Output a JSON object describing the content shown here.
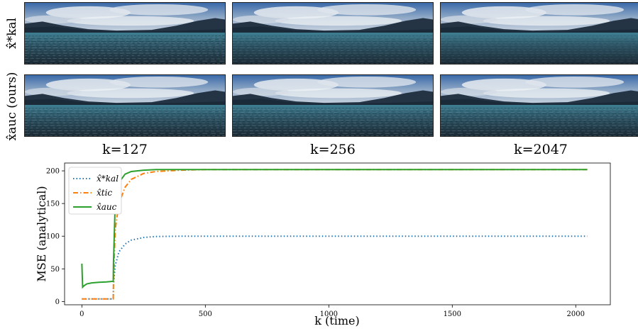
{
  "rows": [
    {
      "label": "x̂*kal"
    },
    {
      "label": "x̂auc (ours)"
    }
  ],
  "columns": [
    "k=127",
    "k=256",
    "k=2047"
  ],
  "chart_data": {
    "type": "line",
    "xlabel": "k (time)",
    "ylabel": "MSE (analytical)",
    "xlim": [
      -70,
      2140
    ],
    "ylim": [
      -5,
      212
    ],
    "xticks": [
      0,
      500,
      1000,
      1500,
      2000
    ],
    "yticks": [
      0,
      50,
      100,
      150,
      200
    ],
    "grid": false,
    "legend_position": "top-left",
    "series": [
      {
        "name": "x̂*kal",
        "color": "#1f77b4",
        "style": "dotted",
        "x": [
          0,
          127,
          128,
          135,
          150,
          175,
          200,
          250,
          300,
          400,
          500,
          750,
          1000,
          2047
        ],
        "y": [
          4,
          4,
          25,
          55,
          76,
          88,
          94,
          98,
          99.5,
          100,
          100,
          100,
          100,
          100
        ]
      },
      {
        "name": "x̂tic",
        "color": "#ff7f0e",
        "style": "dashdot",
        "x": [
          0,
          127,
          128,
          135,
          150,
          175,
          200,
          250,
          300,
          400,
          500,
          750,
          1000,
          2047
        ],
        "y": [
          4,
          4,
          30,
          110,
          150,
          175,
          187,
          196,
          199,
          201,
          202,
          202,
          202,
          202
        ]
      },
      {
        "name": "x̂auc",
        "color": "#2ca02c",
        "style": "solid",
        "x": [
          0,
          3,
          8,
          20,
          40,
          70,
          100,
          127,
          128,
          135,
          150,
          175,
          200,
          250,
          300,
          500,
          1000,
          2047
        ],
        "y": [
          58,
          22,
          24,
          27,
          28.5,
          29.5,
          30,
          31,
          60,
          150,
          182,
          195,
          199,
          201,
          202,
          202,
          202,
          202
        ]
      }
    ]
  }
}
